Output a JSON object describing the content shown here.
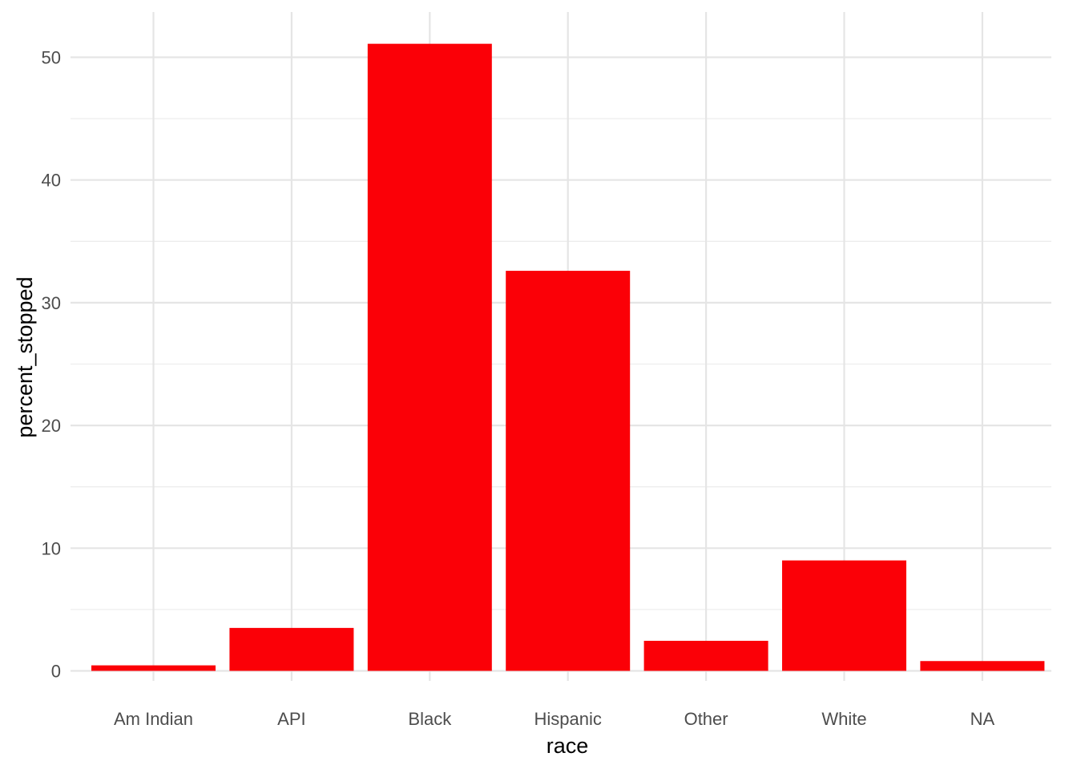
{
  "chart_data": {
    "type": "bar",
    "categories": [
      "Am Indian",
      "API",
      "Black",
      "Hispanic",
      "Other",
      "White",
      "NA"
    ],
    "values": [
      0.45,
      3.5,
      51.1,
      32.6,
      2.45,
      9.0,
      0.8
    ],
    "xlabel": "race",
    "ylabel": "percent_stopped",
    "ylim": [
      0,
      53
    ],
    "yticks": [
      0,
      10,
      20,
      30,
      40,
      50
    ],
    "grid": true,
    "bar_color": "#fb0007"
  }
}
